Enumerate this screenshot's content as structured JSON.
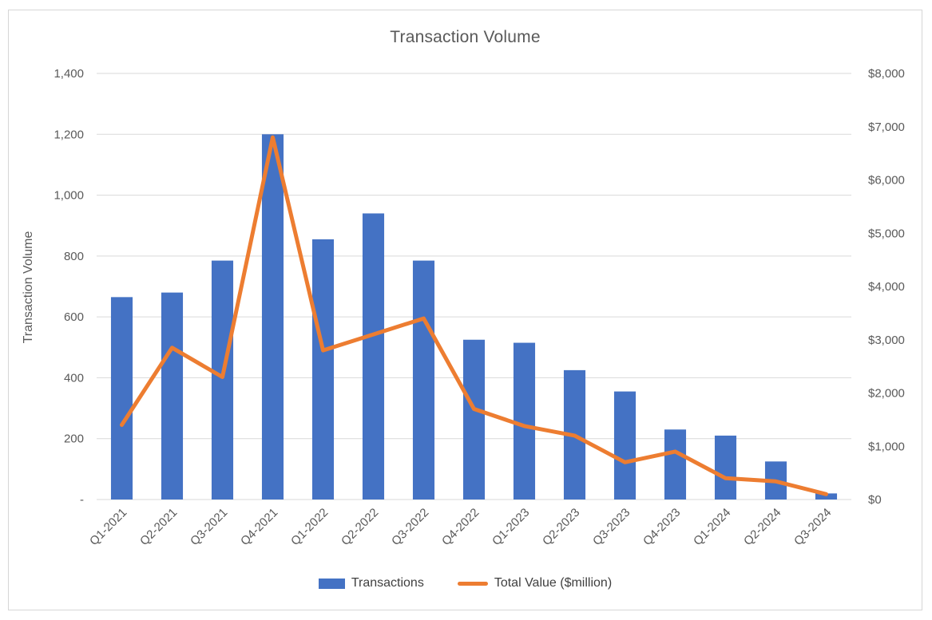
{
  "chart": {
    "title": "Transaction Volume",
    "y_left_title": "Transaction Volume"
  },
  "legend": {
    "items": [
      {
        "label": "Transactions",
        "swatch": "bar",
        "color": "#4472C4"
      },
      {
        "label": "Total Value ($million)",
        "swatch": "line",
        "color": "#ED7D31"
      }
    ]
  },
  "colors": {
    "bar_series": "#4472C4",
    "line_series": "#ED7D31",
    "gridline": "#d9d9d9",
    "axis_text": "#595959",
    "title_text": "#595959",
    "frame_border": "#d6d6d6"
  },
  "chart_data": {
    "type": "bar",
    "subtype": "combo-bar-line-dual-axis",
    "title": "Transaction Volume",
    "categories": [
      "Q1-2021",
      "Q2-2021",
      "Q3-2021",
      "Q4-2021",
      "Q1-2022",
      "Q2-2022",
      "Q3-2022",
      "Q4-2022",
      "Q1-2023",
      "Q2-2023",
      "Q3-2023",
      "Q4-2023",
      "Q1-2024",
      "Q2-2024",
      "Q3-2024"
    ],
    "series": [
      {
        "name": "Transactions",
        "type": "bar",
        "axis": "left",
        "color": "#4472C4",
        "values": [
          665,
          680,
          785,
          1200,
          855,
          940,
          785,
          525,
          515,
          425,
          355,
          230,
          210,
          125,
          20
        ]
      },
      {
        "name": "Total Value ($million)",
        "type": "line",
        "axis": "right",
        "color": "#ED7D31",
        "values": [
          1400,
          2850,
          2300,
          6800,
          2800,
          3100,
          3400,
          1700,
          1380,
          1200,
          700,
          900,
          400,
          340,
          100
        ]
      }
    ],
    "left_axis": {
      "title": "Transaction Volume",
      "min": 0,
      "max": 1400,
      "step": 200,
      "tick_labels": [
        "-",
        "200",
        "400",
        "600",
        "800",
        "1,000",
        "1,200",
        "1,400"
      ]
    },
    "right_axis": {
      "title": "",
      "min": 0,
      "max": 8000,
      "step": 1000,
      "tick_labels": [
        "$0",
        "$1,000",
        "$2,000",
        "$3,000",
        "$4,000",
        "$5,000",
        "$6,000",
        "$7,000",
        "$8,000"
      ]
    },
    "grid": "horizontal",
    "legend_position": "bottom",
    "x_label_rotation": -45
  }
}
